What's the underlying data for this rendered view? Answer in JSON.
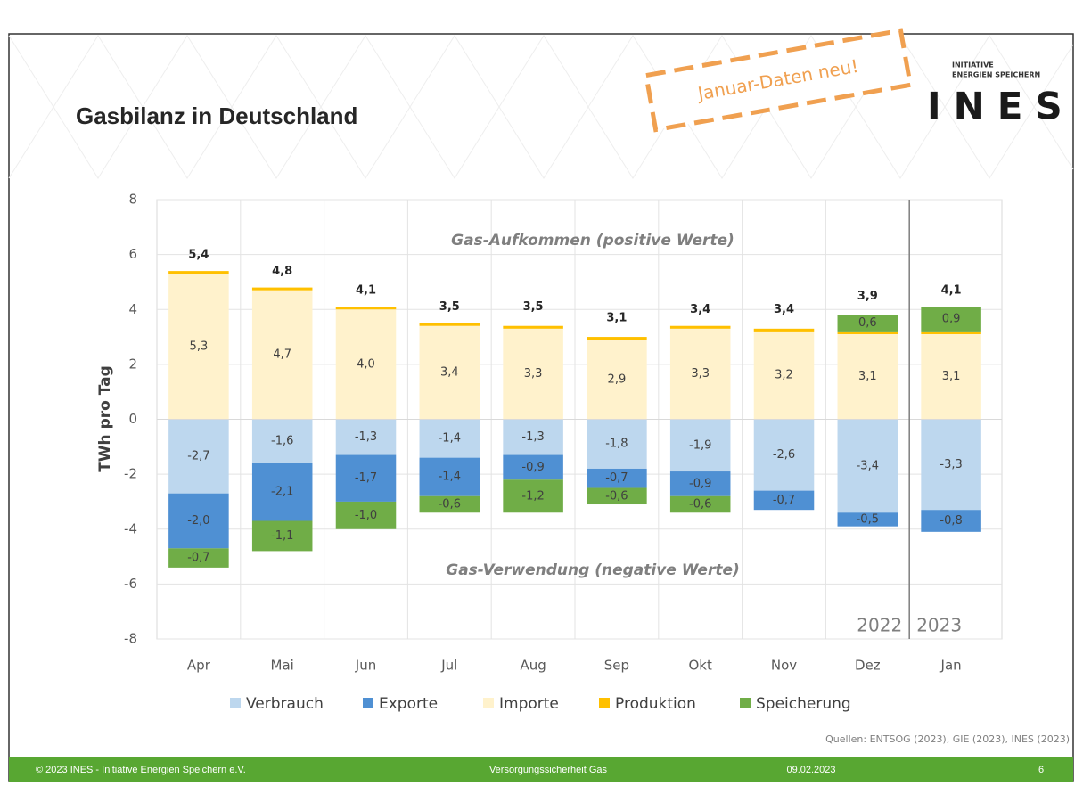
{
  "chart_data": {
    "type": "stacked_bar",
    "title": "Gasbilanz in Deutschland",
    "stamp": "Januar-Daten neu!",
    "logo_line1": "INITIATIVE",
    "logo_line2": "ENERGIEN SPEICHERN",
    "logo": "INES",
    "y_label": "TWh pro Tag",
    "annotations": [
      "Gas-Aufkommen (positive Werte)",
      "Gas-Verwendung (negative Werte)"
    ],
    "year_labels": [
      "2022",
      "2023"
    ],
    "source": "Quellen: ENTSOG (2023), GIE (2023), INES (2023)",
    "footer": [
      "© 2023 INES - Initiative Energien Speichern e.V.",
      "Versorgungssicherheit Gas",
      "09.02.2023",
      "6"
    ],
    "categories": [
      "Apr",
      "Mai",
      "Jun",
      "Jul",
      "Aug",
      "Sep",
      "Okt",
      "Nov",
      "Dez",
      "Jan"
    ],
    "series": [
      {
        "name": "Verbrauch",
        "color": "#bdd7ee",
        "values": [
          -2.7,
          -1.6,
          -1.3,
          -1.4,
          -1.3,
          -1.8,
          -1.9,
          -2.6,
          -3.4,
          -3.3
        ],
        "value_labels": [
          "-2,7",
          "-1,6",
          "-1,3",
          "-1,4",
          "-1,3",
          "-1,8",
          "-1,9",
          "-2,6",
          "-3,4",
          "-3,3"
        ]
      },
      {
        "name": "Exporte",
        "color": "#4f90d3",
        "values": [
          -2.0,
          -2.1,
          -1.7,
          -1.4,
          -0.9,
          -0.7,
          -0.9,
          -0.7,
          -0.5,
          -0.8
        ],
        "value_labels": [
          "-2,0",
          "-2,1",
          "-1,7",
          "-1,4",
          "-0,9",
          "-0,7",
          "-0,9",
          "-0,7",
          "-0,5",
          "-0,8"
        ]
      },
      {
        "name": "Importe",
        "color": "#fff2cc",
        "values": [
          5.3,
          4.7,
          4.0,
          3.4,
          3.3,
          2.9,
          3.3,
          3.2,
          3.1,
          3.1
        ],
        "value_labels": [
          "5,3",
          "4,7",
          "4,0",
          "3,4",
          "3,3",
          "2,9",
          "3,3",
          "3,2",
          "3,1",
          "3,1"
        ]
      },
      {
        "name": "Produktion",
        "color": "#ffc000",
        "values": [
          0.1,
          0.1,
          0.1,
          0.1,
          0.1,
          0.1,
          0.1,
          0.1,
          0.1,
          0.1
        ]
      },
      {
        "name": "Speicherung",
        "color": "#70ad47",
        "values": [
          -0.7,
          -1.1,
          -1.0,
          -0.6,
          -1.2,
          -0.6,
          -0.6,
          null,
          0.6,
          0.9
        ],
        "value_labels": [
          "-0,7",
          "-1,1",
          "-1,0",
          "-0,6",
          "-1,2",
          "-0,6",
          "-0,6",
          null,
          "0,6",
          "0,9"
        ]
      }
    ],
    "totals": [
      5.4,
      4.8,
      4.1,
      3.5,
      3.5,
      3.1,
      3.4,
      3.4,
      3.9,
      4.1
    ],
    "total_labels": [
      "5,4",
      "4,8",
      "4,1",
      "3,5",
      "3,5",
      "3,1",
      "3,4",
      "3,4",
      "3,9",
      "4,1"
    ],
    "ylim": [
      -8,
      8
    ],
    "yticks": [
      -8,
      -6,
      -4,
      -2,
      0,
      2,
      4,
      6,
      8
    ],
    "grid": true,
    "legend": "bottom"
  }
}
